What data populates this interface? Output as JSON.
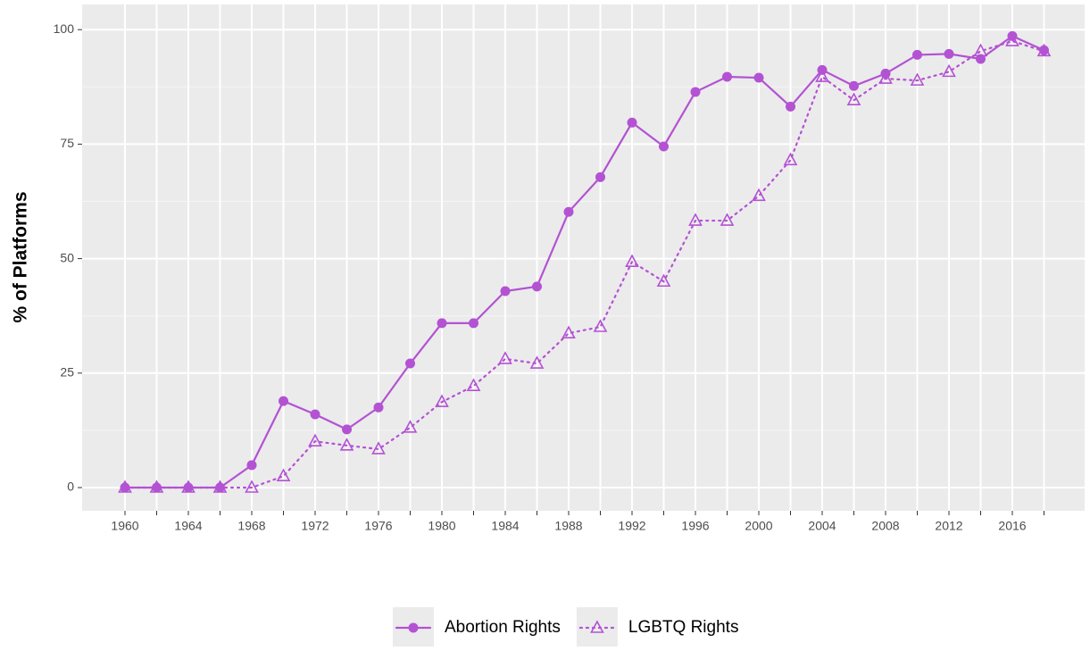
{
  "chart_data": {
    "type": "line",
    "y_label": "% of Platforms",
    "categories": [
      "1960",
      null,
      "1964",
      null,
      "1968",
      null,
      "1972",
      null,
      "1976",
      null,
      "1980",
      null,
      "1984",
      null,
      "1988",
      null,
      "1992",
      null,
      "1996",
      null,
      "2000",
      null,
      "2004",
      null,
      "2008",
      null,
      "2012",
      null,
      "2016",
      null
    ],
    "series": [
      {
        "name": "Abortion Rights",
        "color": "#b352d3",
        "marker": "circle",
        "dash": "solid",
        "values": [
          0,
          0,
          0,
          0,
          4.9,
          18.9,
          16,
          12.7,
          17.5,
          27.1,
          35.9,
          35.9,
          42.9,
          43.9,
          60.2,
          67.8,
          79.7,
          74.5,
          86.4,
          89.7,
          89.5,
          83.2,
          91.2,
          87.7,
          90.4,
          94.5,
          94.7,
          93.6,
          98.6,
          95.5
        ]
      },
      {
        "name": "LGBTQ Rights",
        "color": "#b352d3",
        "marker": "triangle-open",
        "dash": "dotted",
        "values": [
          0,
          0,
          0,
          0,
          0,
          2.5,
          10.1,
          9.2,
          8.4,
          13.1,
          18.7,
          22.2,
          28.1,
          27.1,
          33.7,
          35.1,
          49.3,
          45,
          58.3,
          58.3,
          63.7,
          71.5,
          89.7,
          84.6,
          89.3,
          88.9,
          90.8,
          95.3,
          97.5,
          95.3
        ]
      }
    ],
    "ylim": [
      -5.07,
      105.5
    ],
    "yticks": [
      0,
      25,
      50,
      75,
      100
    ],
    "grid": true,
    "legend": "bottom"
  }
}
